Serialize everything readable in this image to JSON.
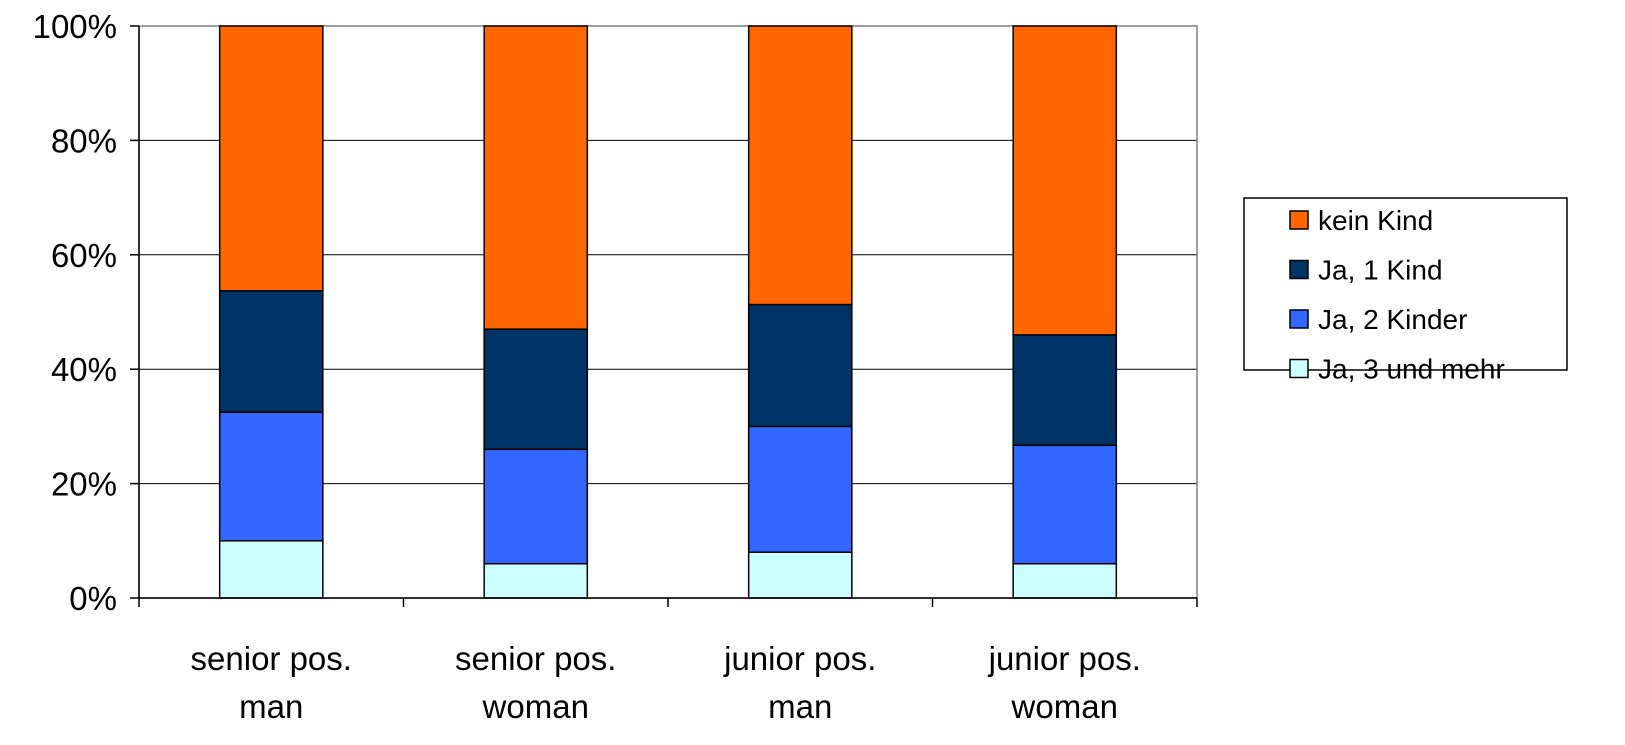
{
  "chart_data": {
    "type": "bar",
    "stacked": "percent",
    "categories": [
      [
        "senior pos.",
        "man"
      ],
      [
        "senior pos.",
        "woman"
      ],
      [
        "junior pos.",
        "man"
      ],
      [
        "junior pos.",
        "woman"
      ]
    ],
    "series": [
      {
        "name": "Ja, 3 und mehr",
        "color": "#ccffff",
        "values": [
          10,
          6,
          8,
          6
        ]
      },
      {
        "name": "Ja, 2 Kinder",
        "color": "#3366ff",
        "values": [
          22.5,
          20,
          22,
          20.7
        ]
      },
      {
        "name": "Ja, 1 Kind",
        "color": "#003366",
        "values": [
          21.2,
          21,
          21.3,
          19.3
        ]
      },
      {
        "name": "kein Kind",
        "color": "#ff6600",
        "values": [
          46.3,
          53,
          48.7,
          54
        ]
      }
    ],
    "legend_order": [
      "kein Kind",
      "Ja, 1 Kind",
      "Ja, 2 Kinder",
      "Ja, 3 und mehr"
    ],
    "y_ticks": [
      "0%",
      "20%",
      "40%",
      "60%",
      "80%",
      "100%"
    ],
    "ylim": [
      0,
      100
    ],
    "grid": true,
    "legend_position": "right"
  }
}
